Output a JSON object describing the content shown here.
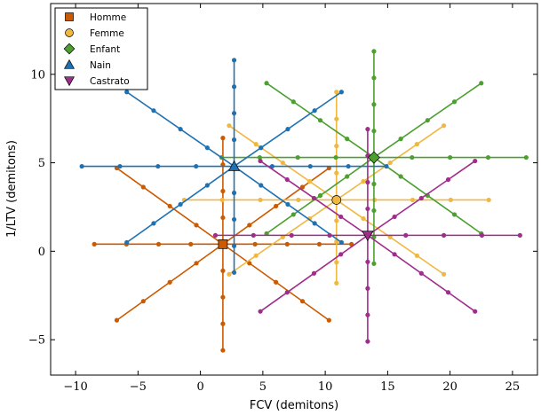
{
  "chart_data": {
    "type": "scatter",
    "xlabel": "FCV (demitons)",
    "ylabel": "1/LTV (demitons)",
    "xlim": [
      -12,
      27
    ],
    "ylim": [
      -7,
      14
    ],
    "xticks": [
      -10,
      -5,
      0,
      5,
      10,
      15,
      20,
      25
    ],
    "yticks": [
      -5,
      0,
      5,
      10
    ],
    "xtick_labels": [
      "−10",
      "−5",
      "0",
      "5",
      "10",
      "15",
      "20",
      "25"
    ],
    "ytick_labels": [
      "−5",
      "0",
      "5",
      "10"
    ],
    "legend_position": "top-left",
    "step_count": 4,
    "series": [
      {
        "name": "Homme",
        "color": "#cc5a00",
        "marker": "square",
        "center": [
          1.8,
          0.4
        ],
        "endpoints": [
          [
            -8.5,
            0.4
          ],
          [
            12.1,
            0.4
          ],
          [
            1.8,
            6.4
          ],
          [
            1.8,
            -5.6
          ],
          [
            -6.7,
            4.7
          ],
          [
            10.3,
            -3.9
          ],
          [
            -6.7,
            -3.9
          ],
          [
            10.3,
            4.7
          ]
        ]
      },
      {
        "name": "Femme",
        "color": "#f0b840",
        "marker": "circle",
        "center": [
          10.9,
          2.9
        ],
        "endpoints": [
          [
            -1.3,
            2.9
          ],
          [
            23.1,
            2.9
          ],
          [
            10.9,
            9.0
          ],
          [
            10.9,
            -1.8
          ],
          [
            2.3,
            7.1
          ],
          [
            19.5,
            -1.3
          ],
          [
            2.3,
            -1.3
          ],
          [
            19.5,
            7.1
          ]
        ]
      },
      {
        "name": "Enfant",
        "color": "#4ca030",
        "marker": "diamond",
        "center": [
          13.9,
          5.3
        ],
        "endpoints": [
          [
            1.7,
            5.3
          ],
          [
            26.1,
            5.3
          ],
          [
            13.9,
            11.3
          ],
          [
            13.9,
            -0.7
          ],
          [
            5.3,
            9.5
          ],
          [
            22.5,
            1.0
          ],
          [
            5.3,
            1.0
          ],
          [
            22.5,
            9.5
          ]
        ]
      },
      {
        "name": "Nain",
        "color": "#1e72b4",
        "marker": "triangle-up",
        "center": [
          2.7,
          4.8
        ],
        "endpoints": [
          [
            -9.5,
            4.8
          ],
          [
            14.9,
            4.8
          ],
          [
            2.7,
            10.8
          ],
          [
            2.7,
            -1.2
          ],
          [
            -5.9,
            9.0
          ],
          [
            11.3,
            0.5
          ],
          [
            -5.9,
            0.5
          ],
          [
            11.3,
            9.0
          ]
        ]
      },
      {
        "name": "Castrato",
        "color": "#a02d8c",
        "marker": "triangle-down",
        "center": [
          13.4,
          0.9
        ],
        "endpoints": [
          [
            1.2,
            0.9
          ],
          [
            25.6,
            0.9
          ],
          [
            13.4,
            6.9
          ],
          [
            13.4,
            -5.1
          ],
          [
            4.8,
            5.1
          ],
          [
            22.0,
            -3.4
          ],
          [
            4.8,
            -3.4
          ],
          [
            22.0,
            5.1
          ]
        ]
      }
    ]
  }
}
